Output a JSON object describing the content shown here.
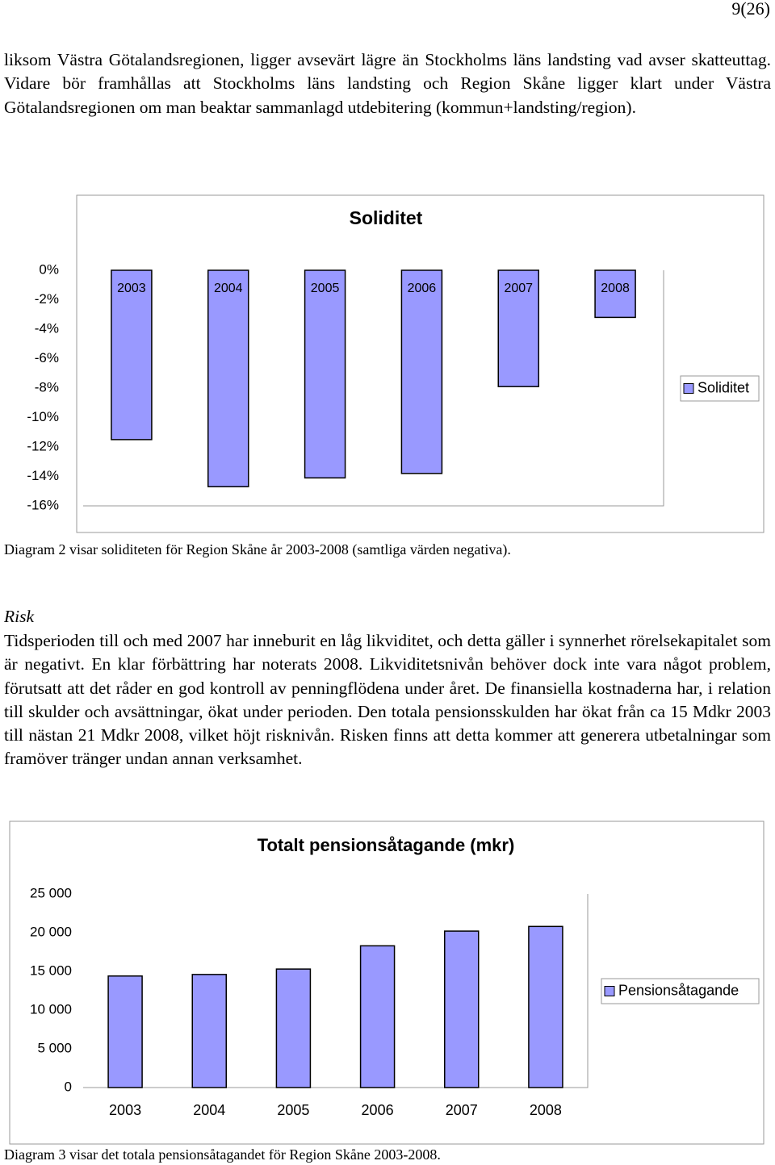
{
  "page_number": "9(26)",
  "paragraphs": [
    "liksom Västra Götalandsregionen, ligger avsevärt lägre än Stockholms läns landsting vad avser skatteuttag. Vidare bör framhållas att Stockholms läns landsting och Region Skåne ligger klart under Västra Götalandsregionen om man beaktar sammanlagd utdebitering (kommun+landsting/region).",
    "Tidsperioden till och med 2007 har inneburit en låg likviditet, och detta gäller i synnerhet rörelsekapitalet som är negativt. En klar förbättring har noterats 2008. Likviditetsnivån behöver dock inte vara något problem, förutsatt att det råder en god kontroll av penningflödena under året. De finansiella kostnaderna har, i relation till skulder och avsättningar, ökat under perioden. Den totala pensionsskulden har ökat från ca 15 Mdkr 2003 till nästan 21 Mdkr 2008, vilket höjt risknivån. Risken finns att detta kommer att generera utbetalningar som framöver tränger undan annan verksamhet."
  ],
  "heading": "Risk",
  "captions": [
    "Diagram 2 visar soliditeten för Region Skåne år 2003-2008 (samtliga värden negativa).",
    "Diagram 3 visar det totala pensionsåtagandet för Region Skåne 2003-2008."
  ],
  "chart_data": [
    {
      "type": "bar",
      "title": "Soliditet",
      "categories": [
        "2003",
        "2004",
        "2005",
        "2006",
        "2007",
        "2008"
      ],
      "series": [
        {
          "name": "Soliditet",
          "color": "#9999ff",
          "values": [
            -11.5,
            -14.7,
            -14.1,
            -13.8,
            -7.9,
            -3.2
          ]
        }
      ],
      "ylim": [
        -16,
        0
      ],
      "yticks": [
        {
          "value": 0,
          "label": "0%"
        },
        {
          "value": -2,
          "label": "-2%"
        },
        {
          "value": -4,
          "label": "-4%"
        },
        {
          "value": -6,
          "label": "-6%"
        },
        {
          "value": -8,
          "label": "-8%"
        },
        {
          "value": -10,
          "label": "-10%"
        },
        {
          "value": -12,
          "label": "-12%"
        },
        {
          "value": -14,
          "label": "-14%"
        },
        {
          "value": -16,
          "label": "-16%"
        }
      ],
      "grid": false,
      "legend": "right"
    },
    {
      "type": "bar",
      "title": "Totalt pensionsåtagande (mkr)",
      "categories": [
        "2003",
        "2004",
        "2005",
        "2006",
        "2007",
        "2008"
      ],
      "series": [
        {
          "name": "Pensionsåtagande",
          "color": "#9999ff",
          "values": [
            14400,
            14600,
            15300,
            18300,
            20200,
            20800
          ]
        }
      ],
      "ylim": [
        0,
        25000
      ],
      "yticks": [
        0,
        {
          "value": 5000,
          "label": "5 000"
        },
        {
          "value": 10000,
          "label": "10 000"
        },
        {
          "value": 15000,
          "label": "15 000"
        },
        {
          "value": 20000,
          "label": "20 000"
        },
        {
          "value": 25000,
          "label": "25 000"
        }
      ],
      "grid": false,
      "legend": "right"
    }
  ]
}
